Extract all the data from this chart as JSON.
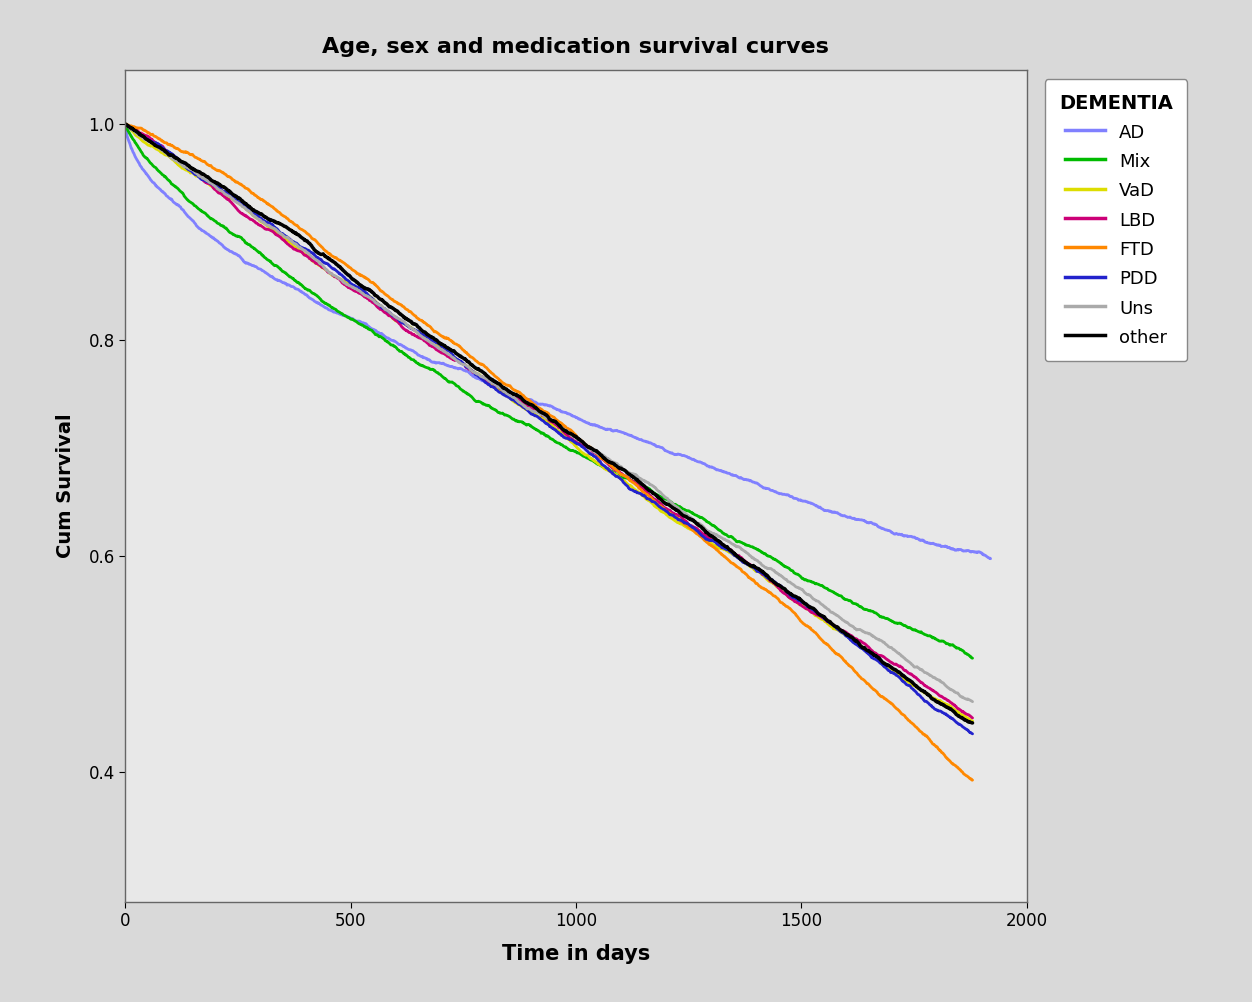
{
  "title": "Age, sex and medication survival curves",
  "xlabel": "Time in days",
  "ylabel": "Cum Survival",
  "legend_title": "DEMENTIA",
  "xlim": [
    0,
    2000
  ],
  "ylim": [
    0.28,
    1.05
  ],
  "yticks": [
    0.4,
    0.6,
    0.8,
    1.0
  ],
  "xticks": [
    0,
    500,
    1000,
    1500,
    2000
  ],
  "fig_facecolor": "#d9d9d9",
  "ax_facecolor": "#e8e8e8",
  "curves": [
    {
      "label": "AD",
      "color": "#8080ff",
      "t_end": 1920,
      "surv_end": 0.595,
      "power": 0.6,
      "lw": 2.0
    },
    {
      "label": "Mix",
      "color": "#00bb00",
      "t_end": 1880,
      "surv_end": 0.5,
      "power": 0.78,
      "lw": 2.0
    },
    {
      "label": "VaD",
      "color": "#dddd00",
      "t_end": 1880,
      "surv_end": 0.455,
      "power": 1.0,
      "lw": 2.0
    },
    {
      "label": "LBD",
      "color": "#cc0077",
      "t_end": 1880,
      "surv_end": 0.445,
      "power": 1.0,
      "lw": 2.0
    },
    {
      "label": "FTD",
      "color": "#ff8800",
      "t_end": 1880,
      "surv_end": 0.39,
      "power": 1.2,
      "lw": 2.0
    },
    {
      "label": "PDD",
      "color": "#2222cc",
      "t_end": 1880,
      "surv_end": 0.44,
      "power": 1.0,
      "lw": 2.0
    },
    {
      "label": "Uns",
      "color": "#aaaaaa",
      "t_end": 1880,
      "surv_end": 0.455,
      "power": 1.0,
      "lw": 2.0
    },
    {
      "label": "other",
      "color": "#000000",
      "t_end": 1880,
      "surv_end": 0.44,
      "power": 1.02,
      "lw": 2.5
    }
  ]
}
